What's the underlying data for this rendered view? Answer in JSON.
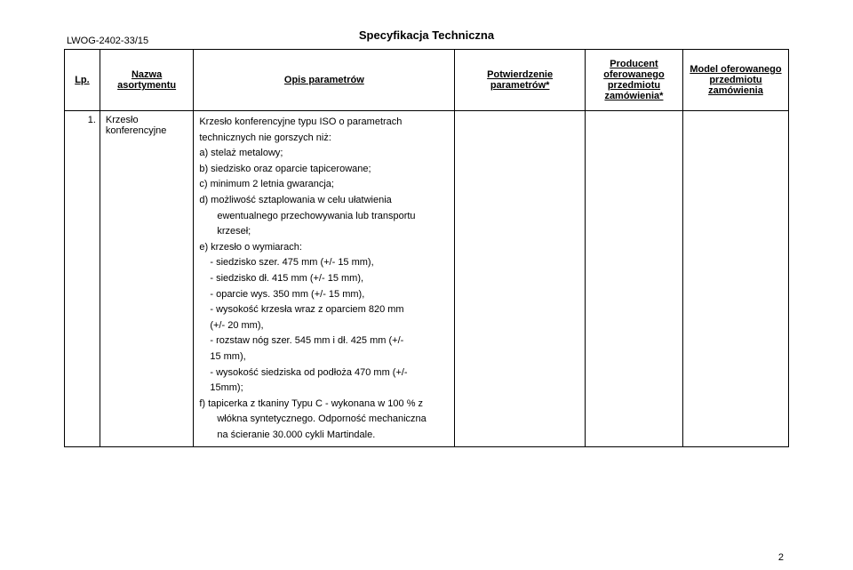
{
  "doc_ref": "LWOG-2402-33/15",
  "page_title": "Specyfikacja Techniczna",
  "headers": {
    "lp": "Lp.",
    "name": "Nazwa asortymentu",
    "desc": "Opis parametrów",
    "conf": "Potwierdzenie parametrów*",
    "prod_line1": "Producent",
    "prod_line2": "oferowanego",
    "prod_line3": "przedmiotu",
    "prod_line4": "zamówienia*",
    "model_line1": "Model oferowanego",
    "model_line2": "przedmiotu",
    "model_line3": "zamówienia"
  },
  "row": {
    "lp": "1.",
    "name_line1": "Krzesło",
    "name_line2": "konferencyjne",
    "desc_intro_1": "Krzesło konferencyjne typu ISO o parametrach",
    "desc_intro_2": "technicznych nie gorszych niż:",
    "item_a": "a) stelaż metalowy;",
    "item_b": "b) siedzisko oraz oparcie tapicerowane;",
    "item_c": "c) minimum 2 letnia gwarancja;",
    "item_d_1": "d) możliwość sztaplowania w celu ułatwienia",
    "item_d_2": "ewentualnego przechowywania lub transportu",
    "item_d_3": "krzeseł;",
    "item_e": "e) krzesło o wymiarach:",
    "dim1": "siedzisko szer. 475 mm (+/- 15 mm),",
    "dim2": "siedzisko dł. 415 mm (+/- 15 mm),",
    "dim3": "oparcie wys. 350 mm (+/- 15 mm),",
    "dim4a": "wysokość krzesła wraz z oparciem 820 mm",
    "dim4b": "(+/- 20 mm),",
    "dim5a": "rozstaw nóg szer. 545 mm i dł. 425 mm (+/-",
    "dim5b": "15 mm),",
    "dim6a": "wysokość siedziska od podłoża 470 mm (+/-",
    "dim6b": "15mm);",
    "item_f_1": "f) tapicerka z tkaniny Typu C - wykonana w 100 % z",
    "item_f_2": "włókna syntetycznego. Odporność mechaniczna",
    "item_f_3": "na ścieranie 30.000 cykli Martindale."
  },
  "page_num": "2"
}
